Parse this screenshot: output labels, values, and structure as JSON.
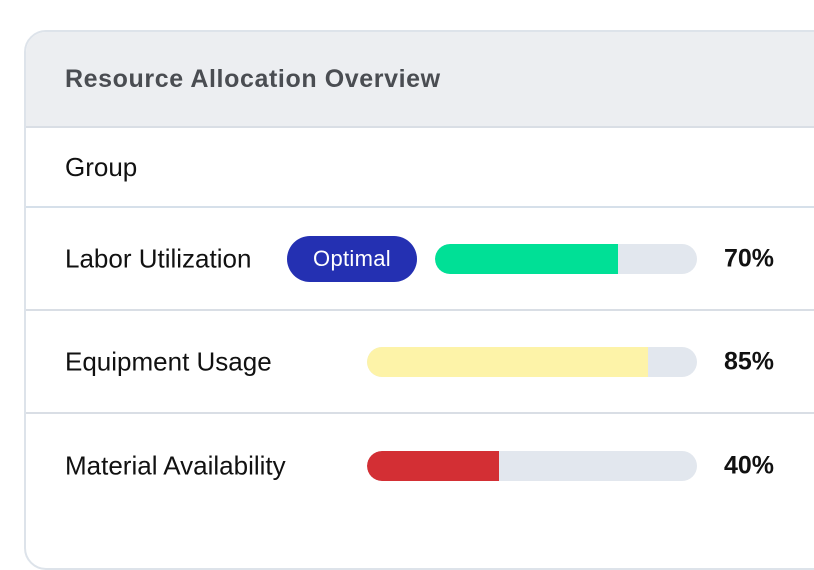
{
  "panel": {
    "title": "Resource Allocation Overview",
    "group_label": "Group"
  },
  "metrics": [
    {
      "label": "Labor Utilization",
      "badge": "Optimal",
      "value": 70,
      "value_text": "70%",
      "bar_color": "#00e096"
    },
    {
      "label": "Equipment Usage",
      "value": 85,
      "value_text": "85%",
      "bar_color": "#fdf3a8"
    },
    {
      "label": "Material Availability",
      "value": 40,
      "value_text": "40%",
      "bar_color": "#d32f34"
    }
  ],
  "colors": {
    "badge_bg": "#2430b2",
    "track": "#e2e7ee",
    "header_bg": "#eceef1"
  }
}
